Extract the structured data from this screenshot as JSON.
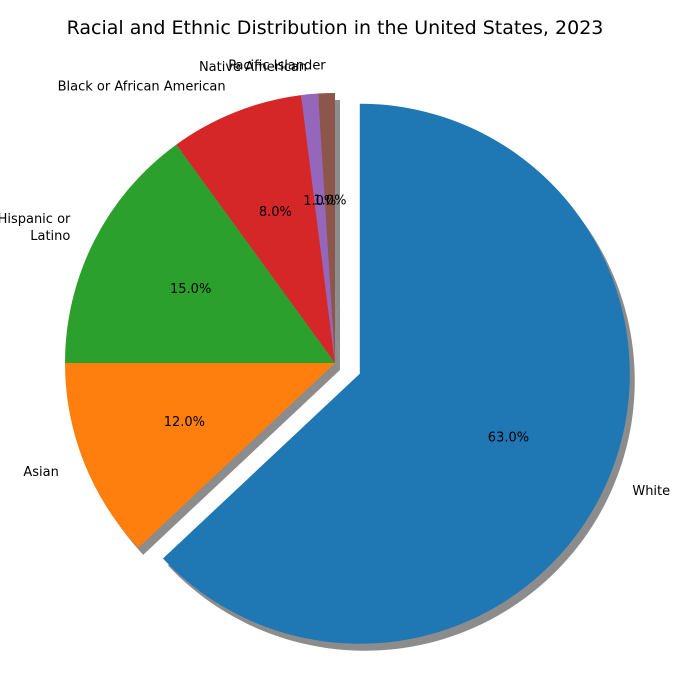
{
  "chart_data": {
    "type": "pie",
    "title": "Racial and Ethnic Distribution in the United States, 2023",
    "slices": [
      {
        "label": "White",
        "value": 63.0,
        "pct_text": "63.0%",
        "color": "#1f77b4",
        "exploded": true
      },
      {
        "label": "Asian",
        "value": 12.0,
        "pct_text": "12.0%",
        "color": "#ff7f0e",
        "exploded": false
      },
      {
        "label": "Hispanic or Latino",
        "value": 15.0,
        "pct_text": "15.0%",
        "color": "#2ca02c",
        "exploded": false
      },
      {
        "label": "Black or African American",
        "value": 8.0,
        "pct_text": "8.0%",
        "color": "#d62728",
        "exploded": false
      },
      {
        "label": "Native American",
        "value": 1.0,
        "pct_text": "1.0%",
        "color": "#9467bd",
        "exploded": false
      },
      {
        "label": "Pacific Islander",
        "value": 1.0,
        "pct_text": "1.0%",
        "color": "#8c564b",
        "exploded": false
      }
    ],
    "start_angle_deg": 90,
    "direction": "clockwise",
    "shadow": true
  }
}
